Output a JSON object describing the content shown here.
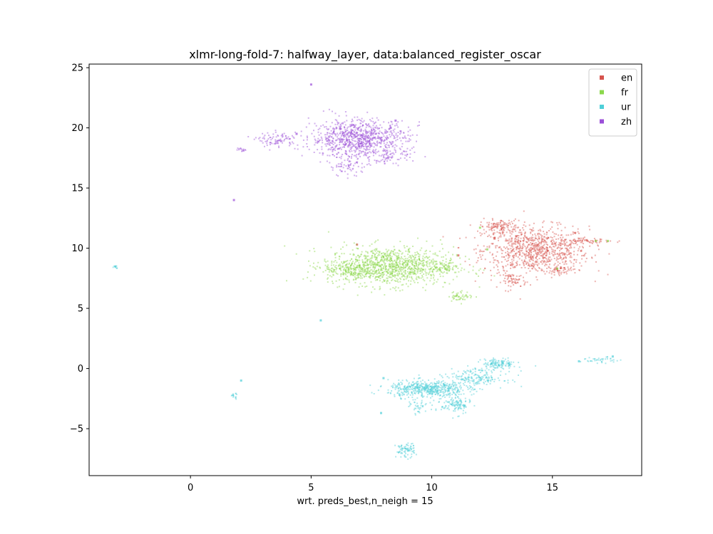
{
  "chart_data": {
    "type": "scatter",
    "title": "xlmr-long-fold-7: halfway_layer, data:balanced_register_oscar",
    "xlabel": "wrt. preds_best,n_neigh = 15",
    "ylabel": "",
    "xlim": [
      -4.2,
      18.7
    ],
    "ylim": [
      -8.9,
      25.3
    ],
    "xticks": [
      0,
      5,
      10,
      15
    ],
    "yticks": [
      -5,
      0,
      5,
      10,
      15,
      20,
      25
    ],
    "xtick_labels": [
      "0",
      "5",
      "10",
      "15"
    ],
    "ytick_labels": [
      "−5",
      "0",
      "5",
      "10",
      "15",
      "20",
      "25"
    ],
    "grid": false,
    "legend_position": "top-right",
    "series": [
      {
        "name": "en",
        "color": "#d6544e",
        "clusters": [
          {
            "cx": 14.3,
            "cy": 9.8,
            "sx": 1.1,
            "sy": 1.0,
            "n": 900
          },
          {
            "cx": 12.8,
            "cy": 11.8,
            "sx": 0.4,
            "sy": 0.3,
            "n": 120
          },
          {
            "cx": 13.4,
            "cy": 7.3,
            "sx": 0.25,
            "sy": 0.3,
            "n": 60
          },
          {
            "cx": 16.4,
            "cy": 10.6,
            "sx": 0.5,
            "sy": 0.1,
            "n": 60
          },
          {
            "cx": 15.3,
            "cy": 8.2,
            "sx": 0.3,
            "sy": 0.15,
            "n": 40
          }
        ],
        "points": [
          [
            6.9,
            10.3
          ],
          [
            11.1,
            9.4
          ],
          [
            12.6,
            10.8
          ],
          [
            13.5,
            11.0
          ]
        ]
      },
      {
        "name": "fr",
        "color": "#8bd84c",
        "clusters": [
          {
            "cx": 8.3,
            "cy": 8.5,
            "sx": 1.3,
            "sy": 0.8,
            "n": 1100
          },
          {
            "cx": 6.6,
            "cy": 8.2,
            "sx": 0.5,
            "sy": 0.35,
            "n": 150
          },
          {
            "cx": 11.2,
            "cy": 6.0,
            "sx": 0.25,
            "sy": 0.2,
            "n": 50
          },
          {
            "cx": 10.5,
            "cy": 8.4,
            "sx": 0.3,
            "sy": 0.2,
            "n": 40
          }
        ],
        "points": [
          [
            17.3,
            10.6
          ],
          [
            16.8,
            10.6
          ],
          [
            12.3,
            9.9
          ],
          [
            12.0,
            11.7
          ],
          [
            15.2,
            8.3
          ]
        ]
      },
      {
        "name": "ur",
        "color": "#4ecfd8",
        "clusters": [
          {
            "cx": 9.8,
            "cy": -1.7,
            "sx": 0.8,
            "sy": 0.35,
            "n": 500
          },
          {
            "cx": 11.8,
            "cy": -0.8,
            "sx": 0.6,
            "sy": 0.4,
            "n": 200
          },
          {
            "cx": 12.8,
            "cy": 0.4,
            "sx": 0.35,
            "sy": 0.2,
            "n": 120
          },
          {
            "cx": 11.0,
            "cy": -3.0,
            "sx": 0.3,
            "sy": 0.4,
            "n": 120
          },
          {
            "cx": 8.9,
            "cy": -6.8,
            "sx": 0.2,
            "sy": 0.3,
            "n": 80
          },
          {
            "cx": 9.5,
            "cy": -3.2,
            "sx": 0.2,
            "sy": 0.3,
            "n": 40
          },
          {
            "cx": 17.0,
            "cy": 0.7,
            "sx": 0.4,
            "sy": 0.12,
            "n": 40
          },
          {
            "cx": 1.8,
            "cy": -2.3,
            "sx": 0.08,
            "sy": 0.12,
            "n": 15
          },
          {
            "cx": -3.1,
            "cy": 8.5,
            "sx": 0.06,
            "sy": 0.08,
            "n": 12
          }
        ],
        "points": [
          [
            5.4,
            4.0
          ],
          [
            2.1,
            -1.0
          ],
          [
            7.9,
            -3.7
          ],
          [
            8.0,
            -0.8
          ],
          [
            16.1,
            0.6
          ],
          [
            17.5,
            1.0
          ]
        ]
      },
      {
        "name": "zh",
        "color": "#9b4fd8",
        "clusters": [
          {
            "cx": 7.0,
            "cy": 19.1,
            "sx": 1.0,
            "sy": 0.8,
            "n": 900
          },
          {
            "cx": 3.6,
            "cy": 19.0,
            "sx": 0.4,
            "sy": 0.3,
            "n": 90
          },
          {
            "cx": 6.5,
            "cy": 16.8,
            "sx": 0.4,
            "sy": 0.4,
            "n": 60
          },
          {
            "cx": 8.3,
            "cy": 17.5,
            "sx": 0.4,
            "sy": 0.3,
            "n": 50
          },
          {
            "cx": 2.1,
            "cy": 18.2,
            "sx": 0.1,
            "sy": 0.08,
            "n": 15
          }
        ],
        "points": [
          [
            5.0,
            23.6
          ],
          [
            1.8,
            14.0
          ],
          [
            8.5,
            20.6
          ],
          [
            4.4,
            19.5
          ],
          [
            8.3,
            20.0
          ]
        ]
      }
    ]
  }
}
